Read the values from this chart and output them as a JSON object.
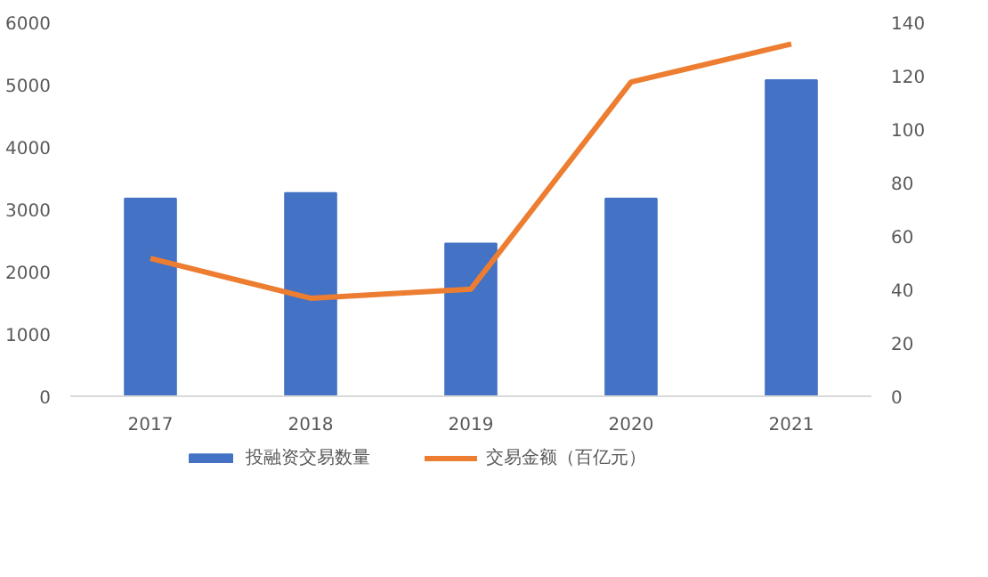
{
  "chart_data": {
    "type": "bar",
    "categories": [
      "2017",
      "2018",
      "2019",
      "2020",
      "2021"
    ],
    "series": [
      {
        "name": "投融资交易数量",
        "color": "#4472c4",
        "values": [
          3170,
          3260,
          2450,
          3170,
          5070
        ]
      },
      {
        "name": "交易金额（百亿元）",
        "color": "#ed7d31",
        "type": "line",
        "axis": "y2",
        "values": [
          51.6,
          36.7,
          40.1,
          117.6,
          131.9
        ]
      }
    ],
    "ylim": [
      0,
      6000
    ],
    "yticks": [
      0,
      1000,
      2000,
      3000,
      4000,
      5000,
      6000
    ],
    "y2lim": [
      0,
      140
    ],
    "y2ticks": [
      0,
      20,
      40,
      60,
      80,
      100,
      120,
      140
    ],
    "grid": false,
    "legend": "bottom",
    "marker": "none"
  }
}
